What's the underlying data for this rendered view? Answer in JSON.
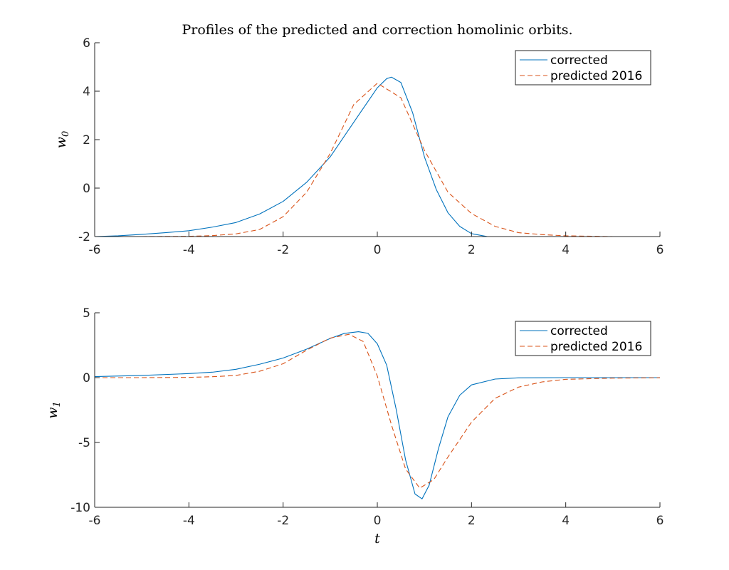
{
  "title": "Profiles of the predicted and correction homolinic orbits.",
  "colors": {
    "corrected": "#0072BD",
    "predicted": "#D95319",
    "axis": "#262626"
  },
  "chart_data": [
    {
      "type": "line",
      "title": "Profiles of the predicted and correction homolinic orbits.",
      "xlabel": "",
      "ylabel_base": "w",
      "ylabel_sub": "0",
      "xlim": [
        -6,
        6
      ],
      "ylim": [
        -2,
        6
      ],
      "xticks": [
        -6,
        -4,
        -2,
        0,
        2,
        4,
        6
      ],
      "yticks": [
        -2,
        0,
        2,
        4,
        6
      ],
      "xtick_labels": [
        "-6",
        "-4",
        "-2",
        "0",
        "2",
        "4",
        "6"
      ],
      "ytick_labels": [
        "-2",
        "0",
        "2",
        "4",
        "6"
      ],
      "legend_position": "top-right",
      "series": [
        {
          "name": "corrected",
          "style": "solid",
          "x": [
            -6,
            -5.5,
            -5,
            -4.5,
            -4,
            -3.5,
            -3,
            -2.5,
            -2,
            -1.5,
            -1,
            -0.5,
            0,
            0.2,
            0.3,
            0.5,
            0.75,
            1,
            1.25,
            1.5,
            1.75,
            2,
            2.5,
            3,
            4,
            5,
            6
          ],
          "y": [
            -2.0,
            -1.97,
            -1.91,
            -1.84,
            -1.76,
            -1.61,
            -1.42,
            -1.07,
            -0.55,
            0.24,
            1.29,
            2.72,
            4.14,
            4.52,
            4.58,
            4.36,
            3.11,
            1.29,
            -0.05,
            -1.02,
            -1.58,
            -1.88,
            -2.06,
            -2.1,
            -2.1,
            -2.1,
            -2.1
          ]
        },
        {
          "name": "predicted 2016",
          "style": "dashed",
          "x": [
            -6,
            -5,
            -4,
            -3.5,
            -3,
            -2.5,
            -2,
            -1.5,
            -1,
            -0.5,
            0,
            0.5,
            1,
            1.5,
            2,
            2.5,
            3,
            3.5,
            4,
            5,
            6
          ],
          "y": [
            -2.0,
            -2.0,
            -1.99,
            -1.96,
            -1.89,
            -1.71,
            -1.18,
            -0.17,
            1.43,
            3.45,
            4.33,
            3.73,
            1.56,
            -0.17,
            -1.05,
            -1.58,
            -1.84,
            -1.92,
            -1.97,
            -2.0,
            -2.0
          ]
        }
      ]
    },
    {
      "type": "line",
      "title": "",
      "xlabel": "t",
      "ylabel_base": "w",
      "ylabel_sub": "1",
      "xlim": [
        -6,
        6
      ],
      "ylim": [
        -10,
        5
      ],
      "xticks": [
        -6,
        -4,
        -2,
        0,
        2,
        4,
        6
      ],
      "yticks": [
        -10,
        -5,
        0,
        5
      ],
      "xtick_labels": [
        "-6",
        "-4",
        "-2",
        "0",
        "2",
        "4",
        "6"
      ],
      "ytick_labels": [
        "-10",
        "-5",
        "0",
        "5"
      ],
      "legend_position": "top-right",
      "series": [
        {
          "name": "corrected",
          "style": "solid",
          "x": [
            -6,
            -5,
            -4,
            -3.5,
            -3,
            -2.5,
            -2,
            -1.5,
            -1,
            -0.7,
            -0.4,
            -0.2,
            0,
            0.2,
            0.4,
            0.6,
            0.8,
            0.95,
            1.1,
            1.3,
            1.5,
            1.75,
            2,
            2.5,
            3,
            4,
            5,
            6
          ],
          "y": [
            0.08,
            0.17,
            0.31,
            0.42,
            0.64,
            1.03,
            1.51,
            2.2,
            3.02,
            3.41,
            3.54,
            3.42,
            2.61,
            0.95,
            -2.44,
            -6.34,
            -8.97,
            -9.35,
            -8.3,
            -5.45,
            -3.02,
            -1.36,
            -0.56,
            -0.11,
            -0.02,
            0,
            0,
            0
          ]
        },
        {
          "name": "predicted 2016",
          "style": "dashed",
          "x": [
            -6,
            -5,
            -4,
            -3.5,
            -3,
            -2.5,
            -2,
            -1.5,
            -1,
            -0.6,
            -0.3,
            0,
            0.3,
            0.6,
            0.9,
            1.2,
            1.5,
            2,
            2.5,
            3,
            3.5,
            4,
            5,
            6
          ],
          "y": [
            0,
            0,
            0.02,
            0.07,
            0.17,
            0.49,
            1.07,
            2.12,
            3.05,
            3.34,
            2.79,
            0.12,
            -3.64,
            -7.04,
            -8.52,
            -7.86,
            -6.12,
            -3.43,
            -1.6,
            -0.73,
            -0.33,
            -0.13,
            -0.04,
            -0.01
          ]
        }
      ]
    }
  ]
}
